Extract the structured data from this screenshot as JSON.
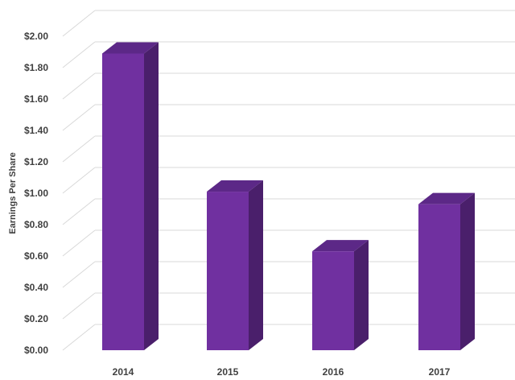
{
  "chart_data": {
    "type": "bar",
    "title": "",
    "xlabel": "",
    "ylabel": "Earnings Per Share",
    "categories": [
      "2014",
      "2015",
      "2016",
      "2017"
    ],
    "values": [
      1.89,
      1.01,
      0.63,
      0.93
    ],
    "ylim": [
      0,
      2.0
    ],
    "yticks": [
      "$0.00",
      "$0.20",
      "$0.40",
      "$0.60",
      "$0.80",
      "$1.00",
      "$1.20",
      "$1.40",
      "$1.60",
      "$1.80",
      "$2.00"
    ],
    "grid": true,
    "legend": "none",
    "style": "3d-column",
    "colors": {
      "front": "#7030a0",
      "side": "#4a1f6b",
      "top": "#5c2887",
      "grid": "#d9d9d9",
      "text": "#404040"
    }
  }
}
